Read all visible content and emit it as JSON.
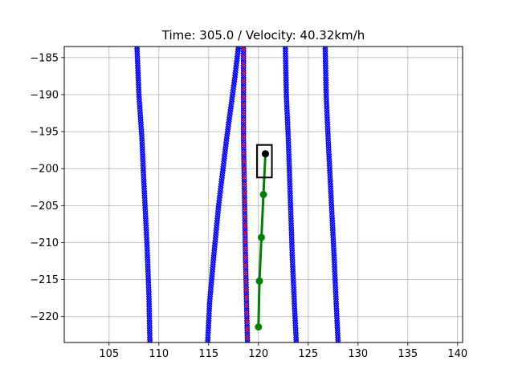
{
  "chart_data": {
    "type": "line",
    "title": "Time: 305.0 / Velocity: 40.32km/h",
    "xlabel": "",
    "ylabel": "",
    "xlim": [
      100.5,
      140.5
    ],
    "ylim": [
      -223.5,
      -183.5
    ],
    "x_ticks": [
      105,
      110,
      115,
      120,
      125,
      130,
      135,
      140
    ],
    "y_ticks": [
      -185,
      -190,
      -195,
      -200,
      -205,
      -210,
      -215,
      -220
    ],
    "x_tick_labels": [
      "105",
      "110",
      "115",
      "120",
      "125",
      "130",
      "135",
      "140"
    ],
    "y_tick_labels": [
      "−185",
      "−190",
      "−195",
      "−200",
      "−205",
      "−210",
      "−215",
      "−220"
    ],
    "grid": true,
    "series": [
      {
        "style": "blue-x-markers",
        "color": "#0000ff",
        "x": [
          107.8,
          108.0,
          108.3,
          108.5,
          108.8,
          109.0,
          109.1
        ],
        "y": [
          -183.5,
          -190,
          -196,
          -202,
          -210,
          -217,
          -223.5
        ]
      },
      {
        "style": "blue-x-markers",
        "color": "#0000ff",
        "x": [
          118.0,
          117.6,
          116.8,
          116.0,
          115.5,
          115.1,
          114.9
        ],
        "y": [
          -183.5,
          -188,
          -196,
          -205,
          -212,
          -218,
          -223.5
        ]
      },
      {
        "style": "blue-x-markers",
        "color": "#0000ff",
        "x": [
          122.7,
          122.8,
          123.0,
          123.2,
          123.4,
          123.6,
          123.8
        ],
        "y": [
          -183.5,
          -190,
          -196,
          -204,
          -212,
          -218,
          -223.5
        ]
      },
      {
        "style": "blue-x-markers",
        "color": "#0000ff",
        "x": [
          126.7,
          126.8,
          127.0,
          127.3,
          127.6,
          127.8,
          128.0
        ],
        "y": [
          -183.5,
          -190,
          -196,
          -204,
          -212,
          -218,
          -223.5
        ]
      },
      {
        "style": "red-dashed-blue-markers",
        "color": "#ff0000",
        "marker_color": "#0000ff",
        "x": [
          118.5,
          118.5,
          118.5,
          118.6,
          118.7,
          118.8,
          118.9
        ],
        "y": [
          -183.5,
          -190,
          -196,
          -204,
          -212,
          -218,
          -223.5
        ]
      },
      {
        "style": "green-line-dots",
        "color": "#008000",
        "x": [
          120.7,
          120.5,
          120.3,
          120.1,
          120.0
        ],
        "y": [
          -198.0,
          -203.5,
          -209.3,
          -215.2,
          -221.4
        ]
      }
    ],
    "vehicle": {
      "center_x": 120.6,
      "center_y": -199.0,
      "width": 1.5,
      "length": 4.4,
      "marker_color": "#000000",
      "box_color": "#000000"
    }
  }
}
